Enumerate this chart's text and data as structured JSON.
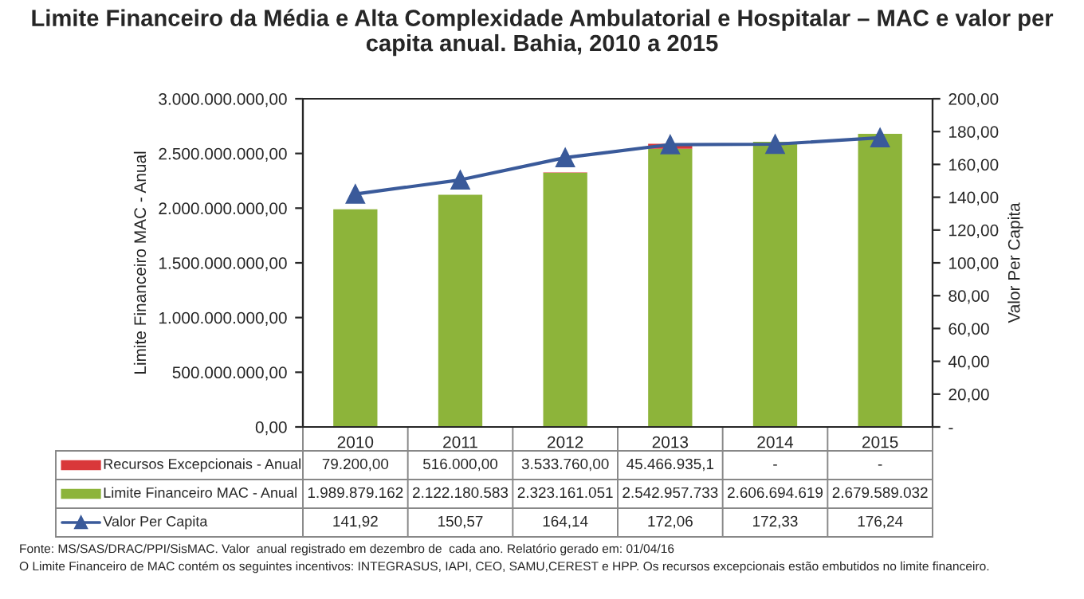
{
  "chart_data": {
    "type": "bar",
    "stacked": true,
    "title": "Limite Financeiro da Média e Alta Complexidade Ambulatorial e Hospitalar – MAC e valor per capita anual. Bahia, 2010 a 2015",
    "ylabel": "Limite Financeiro MAC - Anual",
    "y2label": "Valor Per Capita",
    "categories": [
      "2010",
      "2011",
      "2012",
      "2013",
      "2014",
      "2015"
    ],
    "series": [
      {
        "name": "Limite Financeiro MAC - Anual",
        "color": "#8db43a",
        "values": [
          1989879162,
          2122180583,
          2323161051,
          2542957733,
          2606694619,
          2679589032
        ],
        "value_labels": [
          "1.989.879.162",
          "2.122.180.583",
          "2.323.161.051",
          "2.542.957.733",
          "2.606.694.619",
          "2.679.589.032"
        ]
      },
      {
        "name": "Recursos Excepcionais - Anual",
        "color": "#d9383a",
        "values": [
          79200.0,
          516000.0,
          3533760.0,
          45466935.1,
          null,
          null
        ],
        "value_labels": [
          "79.200,00",
          "516.000,00",
          "3.533.760,00",
          "45.466.935,1",
          "-",
          "-"
        ]
      },
      {
        "name": "Valor Per Capita",
        "type": "line",
        "axis": "y2",
        "color": "#3a5a9a",
        "marker": "triangle",
        "values": [
          141.92,
          150.57,
          164.14,
          172.06,
          172.33,
          176.24
        ],
        "value_labels": [
          "141,92",
          "150,57",
          "164,14",
          "172,06",
          "172,33",
          "176,24"
        ]
      }
    ],
    "ylim": [
      0,
      3000000000
    ],
    "yticks": [
      {
        "value": 0,
        "label": "0,00"
      },
      {
        "value": 500000000,
        "label": "500.000.000,00"
      },
      {
        "value": 1000000000,
        "label": "1.000.000.000,00"
      },
      {
        "value": 1500000000,
        "label": "1.500.000.000,00"
      },
      {
        "value": 2000000000,
        "label": "2.000.000.000,00"
      },
      {
        "value": 2500000000,
        "label": "2.500.000.000,00"
      },
      {
        "value": 3000000000,
        "label": "3.000.000.000,00"
      }
    ],
    "y2lim": [
      0,
      200
    ],
    "y2ticks": [
      {
        "value": 0,
        "label": "-"
      },
      {
        "value": 20,
        "label": "20,00"
      },
      {
        "value": 40,
        "label": "40,00"
      },
      {
        "value": 60,
        "label": "60,00"
      },
      {
        "value": 80,
        "label": "80,00"
      },
      {
        "value": 100,
        "label": "100,00"
      },
      {
        "value": 120,
        "label": "120,00"
      },
      {
        "value": 140,
        "label": "140,00"
      },
      {
        "value": 160,
        "label": "160,00"
      },
      {
        "value": 180,
        "label": "180,00"
      },
      {
        "value": 200,
        "label": "200,00"
      }
    ],
    "grid": false,
    "legend": "bottom",
    "annotations": [
      "Fonte: MS/SAS/DRAC/PPI/SisMAC. Valor  anual registrado em dezembro de  cada ano. Relatório gerado em: 01/04/16",
      "O Limite Financeiro de MAC contém os seguintes incentivos: INTEGRASUS, IAPI, CEO, SAMU,CEREST e HPP. Os recursos excepcionais estão embutidos no limite financeiro."
    ]
  }
}
